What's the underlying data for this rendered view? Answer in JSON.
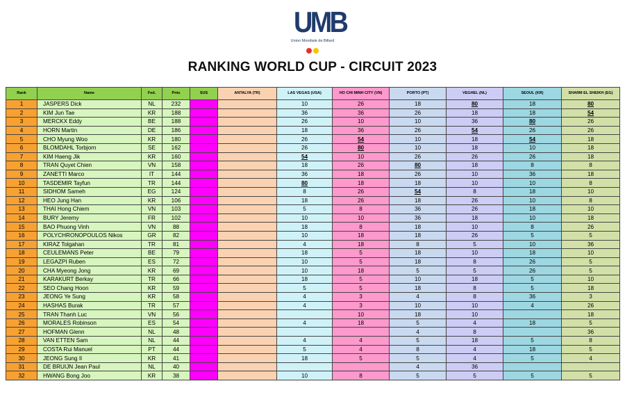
{
  "logo": {
    "mark": "UMB",
    "subtitle": "Union Mondiale de Billard"
  },
  "title": "RANKING WORLD CUP - CIRCUIT 2023",
  "columns": [
    "Rank",
    "Name",
    "Fed.",
    "Pnts",
    "SUS",
    "ANTALYA (TR)",
    "LAS VEGAS (USA)",
    "HO CHI MINH CITY (VN)",
    "PORTO (PT)",
    "VEGHEL (NL)",
    "SEOUL (KR)",
    "SHARM EL SHEIKH (EG)"
  ],
  "rows": [
    {
      "rank": "1",
      "name": "JASPERS Dick",
      "fed": "NL",
      "pnts": "232",
      "sus": "",
      "antalya": "",
      "lasvegas": "10",
      "hochiminh": "26",
      "porto": "18",
      "veghel": "80",
      "seoul": "18",
      "sharm": "80"
    },
    {
      "rank": "2",
      "name": "KIM Jun Tae",
      "fed": "KR",
      "pnts": "188",
      "sus": "",
      "antalya": "",
      "lasvegas": "36",
      "hochiminh": "36",
      "porto": "26",
      "veghel": "18",
      "seoul": "18",
      "sharm": "54"
    },
    {
      "rank": "3",
      "name": "MERCKX Eddy",
      "fed": "BE",
      "pnts": "188",
      "sus": "",
      "antalya": "",
      "lasvegas": "26",
      "hochiminh": "10",
      "porto": "10",
      "veghel": "36",
      "seoul": "80",
      "sharm": "26"
    },
    {
      "rank": "4",
      "name": "HORN Martin",
      "fed": "DE",
      "pnts": "186",
      "sus": "",
      "antalya": "",
      "lasvegas": "18",
      "hochiminh": "36",
      "porto": "26",
      "veghel": "54",
      "seoul": "26",
      "sharm": "26"
    },
    {
      "rank": "5",
      "name": "CHO Myung Woo",
      "fed": "KR",
      "pnts": "180",
      "sus": "",
      "antalya": "",
      "lasvegas": "26",
      "hochiminh": "54",
      "porto": "10",
      "veghel": "18",
      "seoul": "54",
      "sharm": "18"
    },
    {
      "rank": "6",
      "name": "BLOMDAHL Torbjorn",
      "fed": "SE",
      "pnts": "162",
      "sus": "",
      "antalya": "",
      "lasvegas": "26",
      "hochiminh": "80",
      "porto": "10",
      "veghel": "18",
      "seoul": "10",
      "sharm": "18"
    },
    {
      "rank": "7",
      "name": "KIM Haeng Jik",
      "fed": "KR",
      "pnts": "160",
      "sus": "",
      "antalya": "",
      "lasvegas": "54",
      "hochiminh": "10",
      "porto": "26",
      "veghel": "26",
      "seoul": "26",
      "sharm": "18"
    },
    {
      "rank": "8",
      "name": "TRAN Quyet Chien",
      "fed": "VN",
      "pnts": "158",
      "sus": "",
      "antalya": "",
      "lasvegas": "18",
      "hochiminh": "26",
      "porto": "80",
      "veghel": "18",
      "seoul": "8",
      "sharm": "8"
    },
    {
      "rank": "9",
      "name": "ZANETTI Marco",
      "fed": "IT",
      "pnts": "144",
      "sus": "",
      "antalya": "",
      "lasvegas": "36",
      "hochiminh": "18",
      "porto": "26",
      "veghel": "10",
      "seoul": "36",
      "sharm": "18"
    },
    {
      "rank": "10",
      "name": "TASDEMIR Tayfun",
      "fed": "TR",
      "pnts": "144",
      "sus": "",
      "antalya": "",
      "lasvegas": "80",
      "hochiminh": "18",
      "porto": "18",
      "veghel": "10",
      "seoul": "10",
      "sharm": "8"
    },
    {
      "rank": "11",
      "name": "SIDHOM Sameh",
      "fed": "EG",
      "pnts": "124",
      "sus": "",
      "antalya": "",
      "lasvegas": "8",
      "hochiminh": "26",
      "porto": "54",
      "veghel": "8",
      "seoul": "18",
      "sharm": "10"
    },
    {
      "rank": "12",
      "name": "HEO Jung Han",
      "fed": "KR",
      "pnts": "106",
      "sus": "",
      "antalya": "",
      "lasvegas": "18",
      "hochiminh": "26",
      "porto": "18",
      "veghel": "26",
      "seoul": "10",
      "sharm": "8"
    },
    {
      "rank": "13",
      "name": "THAI Hong Chiem",
      "fed": "VN",
      "pnts": "103",
      "sus": "",
      "antalya": "",
      "lasvegas": "5",
      "hochiminh": "8",
      "porto": "36",
      "veghel": "26",
      "seoul": "18",
      "sharm": "10"
    },
    {
      "rank": "14",
      "name": "BURY Jeremy",
      "fed": "FR",
      "pnts": "102",
      "sus": "",
      "antalya": "",
      "lasvegas": "10",
      "hochiminh": "10",
      "porto": "36",
      "veghel": "18",
      "seoul": "10",
      "sharm": "18"
    },
    {
      "rank": "15",
      "name": "BAO Phuong Vinh",
      "fed": "VN",
      "pnts": "88",
      "sus": "",
      "antalya": "",
      "lasvegas": "18",
      "hochiminh": "8",
      "porto": "18",
      "veghel": "10",
      "seoul": "8",
      "sharm": "26"
    },
    {
      "rank": "16",
      "name": "POLYCHRONOPOULOS Nikos",
      "fed": "GR",
      "pnts": "82",
      "sus": "",
      "antalya": "",
      "lasvegas": "10",
      "hochiminh": "18",
      "porto": "18",
      "veghel": "26",
      "seoul": "5",
      "sharm": "5"
    },
    {
      "rank": "17",
      "name": "KIRAZ Tolgahan",
      "fed": "TR",
      "pnts": "81",
      "sus": "",
      "antalya": "",
      "lasvegas": "4",
      "hochiminh": "18",
      "porto": "8",
      "veghel": "5",
      "seoul": "10",
      "sharm": "36"
    },
    {
      "rank": "18",
      "name": "CEULEMANS Peter",
      "fed": "BE",
      "pnts": "79",
      "sus": "",
      "antalya": "",
      "lasvegas": "18",
      "hochiminh": "5",
      "porto": "18",
      "veghel": "10",
      "seoul": "18",
      "sharm": "10"
    },
    {
      "rank": "19",
      "name": "LEGAZPI Ruben",
      "fed": "ES",
      "pnts": "72",
      "sus": "",
      "antalya": "",
      "lasvegas": "10",
      "hochiminh": "5",
      "porto": "18",
      "veghel": "8",
      "seoul": "26",
      "sharm": "5"
    },
    {
      "rank": "20",
      "name": "CHA Myeong Jong",
      "fed": "KR",
      "pnts": "69",
      "sus": "",
      "antalya": "",
      "lasvegas": "10",
      "hochiminh": "18",
      "porto": "5",
      "veghel": "5",
      "seoul": "26",
      "sharm": "5"
    },
    {
      "rank": "21",
      "name": "KARAKURT Berkay",
      "fed": "TR",
      "pnts": "66",
      "sus": "",
      "antalya": "",
      "lasvegas": "18",
      "hochiminh": "5",
      "porto": "10",
      "veghel": "18",
      "seoul": "5",
      "sharm": "10"
    },
    {
      "rank": "22",
      "name": "SEO Chang Hoon",
      "fed": "KR",
      "pnts": "59",
      "sus": "",
      "antalya": "",
      "lasvegas": "5",
      "hochiminh": "5",
      "porto": "18",
      "veghel": "8",
      "seoul": "5",
      "sharm": "18"
    },
    {
      "rank": "23",
      "name": "JEONG Ye Sung",
      "fed": "KR",
      "pnts": "58",
      "sus": "",
      "antalya": "",
      "lasvegas": "4",
      "hochiminh": "3",
      "porto": "4",
      "veghel": "8",
      "seoul": "36",
      "sharm": "3"
    },
    {
      "rank": "24",
      "name": "HASHAS Burak",
      "fed": "TR",
      "pnts": "57",
      "sus": "",
      "antalya": "",
      "lasvegas": "4",
      "hochiminh": "3",
      "porto": "10",
      "veghel": "10",
      "seoul": "4",
      "sharm": "26"
    },
    {
      "rank": "25",
      "name": "TRAN Thanh Luc",
      "fed": "VN",
      "pnts": "56",
      "sus": "",
      "antalya": "",
      "lasvegas": "",
      "hochiminh": "10",
      "porto": "18",
      "veghel": "10",
      "seoul": "",
      "sharm": "18"
    },
    {
      "rank": "26",
      "name": "MORALES Robinson",
      "fed": "ES",
      "pnts": "54",
      "sus": "",
      "antalya": "",
      "lasvegas": "4",
      "hochiminh": "18",
      "porto": "5",
      "veghel": "4",
      "seoul": "18",
      "sharm": "5"
    },
    {
      "rank": "27",
      "name": "HOFMAN Glenn",
      "fed": "NL",
      "pnts": "48",
      "sus": "",
      "antalya": "",
      "lasvegas": "",
      "hochiminh": "",
      "porto": "4",
      "veghel": "8",
      "seoul": "",
      "sharm": "36"
    },
    {
      "rank": "28",
      "name": "VAN ETTEN Sam",
      "fed": "NL",
      "pnts": "44",
      "sus": "",
      "antalya": "",
      "lasvegas": "4",
      "hochiminh": "4",
      "porto": "5",
      "veghel": "18",
      "seoul": "5",
      "sharm": "8"
    },
    {
      "rank": "29",
      "name": "COSTA Rui Manuel",
      "fed": "PT",
      "pnts": "44",
      "sus": "",
      "antalya": "",
      "lasvegas": "5",
      "hochiminh": "4",
      "porto": "8",
      "veghel": "4",
      "seoul": "18",
      "sharm": "5"
    },
    {
      "rank": "30",
      "name": "JEONG Sung Il",
      "fed": "KR",
      "pnts": "41",
      "sus": "",
      "antalya": "",
      "lasvegas": "18",
      "hochiminh": "5",
      "porto": "5",
      "veghel": "4",
      "seoul": "5",
      "sharm": "4"
    },
    {
      "rank": "31",
      "name": "DE BRUIJN Jean Paul",
      "fed": "NL",
      "pnts": "40",
      "sus": "",
      "antalya": "",
      "lasvegas": "",
      "hochiminh": "",
      "porto": "4",
      "veghel": "36",
      "seoul": "",
      "sharm": ""
    },
    {
      "rank": "32",
      "name": "HWANG Bong Joo",
      "fed": "KR",
      "pnts": "38",
      "sus": "",
      "antalya": "",
      "lasvegas": "10",
      "hochiminh": "8",
      "porto": "5",
      "veghel": "5",
      "seoul": "5",
      "sharm": "5"
    }
  ],
  "highlight_values": [
    "80",
    "54"
  ],
  "colors": {
    "header_green": "#92d050",
    "row_green": "#d7f5be",
    "rank_orange": "#f7a132",
    "sus_magenta": "#ff00ff",
    "antalya_peach": "#fbd2b1",
    "lasvegas_cyan": "#cff2f8",
    "hochiminh_pink": "#fd99cc",
    "porto_blue": "#c9d9f0",
    "veghel_lavender": "#ccccf5",
    "seoul_teal": "#9dd7e2",
    "sharm_olive": "#d2e0a8",
    "logo_blue": "#1f3b6d",
    "logo_red": "#e8302a",
    "logo_yellow": "#f5c400"
  }
}
